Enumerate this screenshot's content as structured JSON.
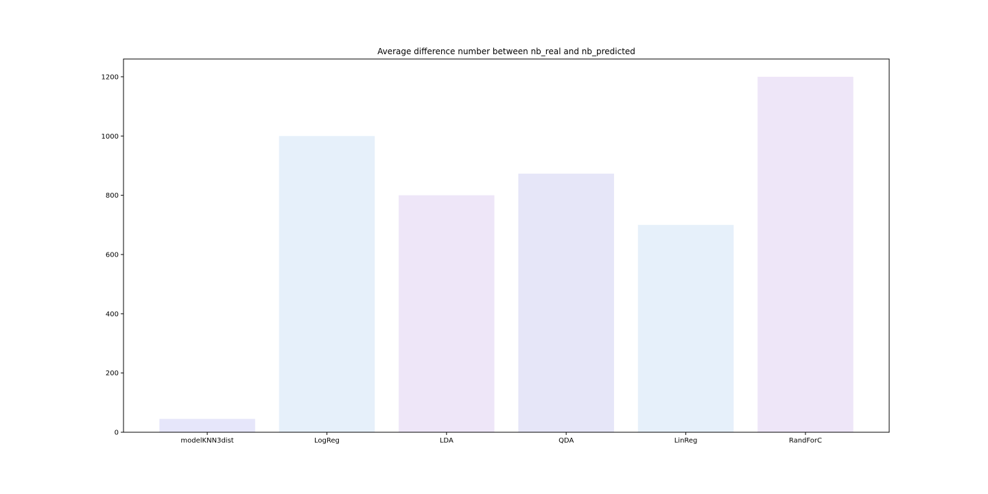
{
  "chart_data": {
    "type": "bar",
    "title": "Average difference number between nb_real and nb_predicted",
    "xlabel": "",
    "ylabel": "",
    "categories": [
      "modelKNN3dist",
      "LogReg",
      "LDA",
      "QDA",
      "LinReg",
      "RandForC"
    ],
    "values": [
      45,
      1000,
      800,
      873,
      700,
      1200
    ],
    "bar_colors": [
      "#e6e6fa",
      "#e6f0fa",
      "#eee6f8",
      "#e6e6f8",
      "#e6f0fa",
      "#eee6f8"
    ],
    "ylim": [
      0,
      1260
    ],
    "yticks": [
      0,
      200,
      400,
      600,
      800,
      1000,
      1200
    ],
    "grid": false,
    "legend": "none"
  }
}
